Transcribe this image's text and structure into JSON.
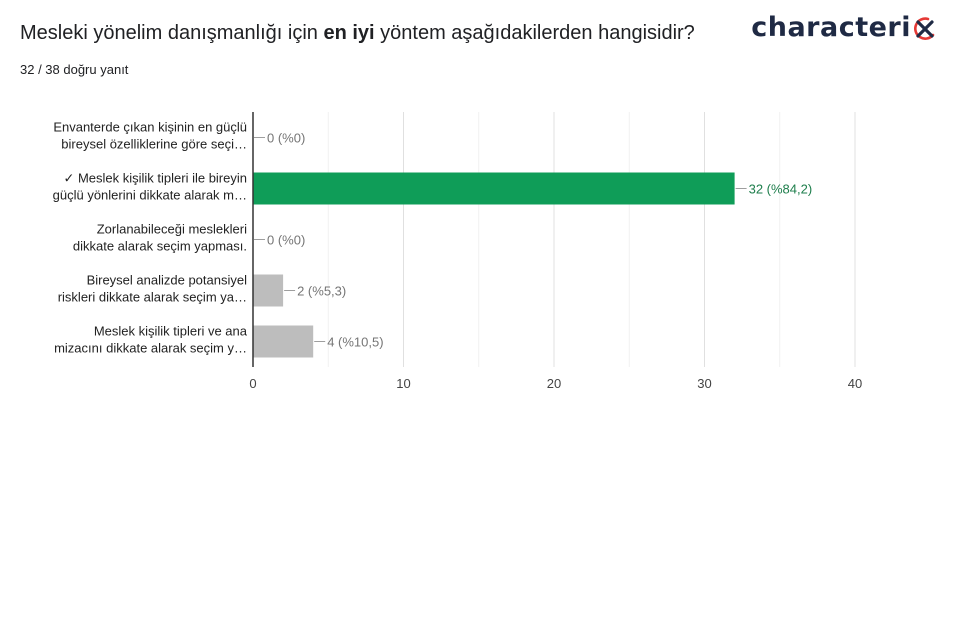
{
  "header": {
    "question_prefix": "Mesleki yönelim danışmanlığı için ",
    "question_bold": "en iyi",
    "question_suffix": " yöntem aşağıdakilerden hangisidir?",
    "response_count": "32 / 38 doğru yanıt",
    "logo_text": "characteri",
    "logo_icon": "x-circle-icon"
  },
  "colors": {
    "correct_bar": "#0f9d58",
    "incorrect_bar": "#bdbdbd",
    "logo_accent": "#e53935",
    "logo_text": "#1f2a44"
  },
  "chart_data": {
    "type": "bar",
    "orientation": "horizontal",
    "categories": [
      [
        "Envanterde çıkan kişinin en güçlü",
        "bireysel özelliklerine göre seçi…"
      ],
      [
        "✓ Meslek kişilik tipleri ile bireyin",
        "güçlü yönlerini dikkate alarak m…"
      ],
      [
        "Zorlanabileceği meslekleri",
        "dikkate alarak seçim yapması."
      ],
      [
        "Bireysel analizde potansiyel",
        "riskleri dikkate alarak seçim ya…"
      ],
      [
        "Meslek kişilik tipleri ve ana",
        "mizacını dikkate alarak seçim y…"
      ]
    ],
    "values": [
      0,
      32,
      0,
      2,
      4
    ],
    "data_labels": [
      "0 (%0)",
      "32 (%84,2)",
      "0 (%0)",
      "2 (%5,3)",
      "4 (%10,5)"
    ],
    "correct_index": 1,
    "xlim": [
      0,
      40
    ],
    "xticks": [
      0,
      10,
      20,
      30,
      40
    ],
    "grid": true,
    "title": "",
    "xlabel": "",
    "ylabel": ""
  }
}
